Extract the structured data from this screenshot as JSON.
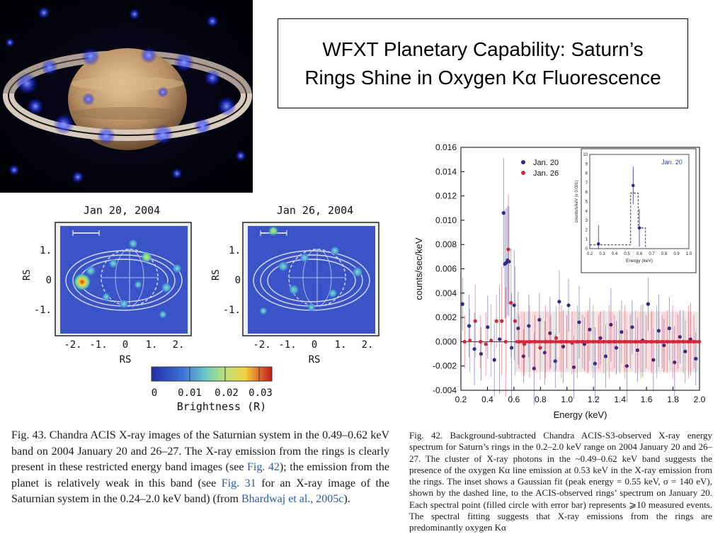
{
  "slide": {
    "title_line1": "WFXT Planetary Capability: Saturn’s",
    "title_line2": "Rings Shine in Oxygen Kα Fluorescence"
  },
  "xray_maps": {
    "panel_left_date": "Jan 20, 2004",
    "panel_right_date": "Jan 26, 2004",
    "y_axis_label": "RS",
    "x_axis_label": "RS",
    "y_ticks": [
      "1.",
      "0",
      "-1."
    ],
    "x_ticks": [
      "-2.",
      "-1.",
      "0",
      "1.",
      "2."
    ],
    "colorbar_ticks": [
      "0",
      "0.01",
      "0.02",
      "0.03"
    ],
    "colorbar_label": "Brightness (R)"
  },
  "chart_data": {
    "type": "scatter",
    "xlabel": "Energy (keV)",
    "ylabel": "counts/sec/keV",
    "xlim": [
      0.2,
      2.0
    ],
    "ylim": [
      -0.004,
      0.016
    ],
    "x_ticks": [
      "0.2",
      "0.4",
      "0.6",
      "0.8",
      "1.0",
      "1.2",
      "1.4",
      "1.6",
      "1.8",
      "2.0"
    ],
    "y_ticks": [
      "-0.004",
      "-0.002",
      "0.000",
      "0.002",
      "0.004",
      "0.006",
      "0.008",
      "0.010",
      "0.012",
      "0.014",
      "0.016"
    ],
    "legend_position": "top-left",
    "series": [
      {
        "name": "Jan. 20",
        "color": "#2b2b8c",
        "x": [
          0.22,
          0.27,
          0.31,
          0.36,
          0.41,
          0.46,
          0.5,
          0.53,
          0.54,
          0.55,
          0.56,
          0.57,
          0.59,
          0.61,
          0.64,
          0.68,
          0.72,
          0.76,
          0.8,
          0.84,
          0.88,
          0.92,
          0.95,
          0.98,
          1.02,
          1.06,
          1.1,
          1.14,
          1.18,
          1.22,
          1.26,
          1.3,
          1.34,
          1.38,
          1.42,
          1.46,
          1.5,
          1.54,
          1.58,
          1.62,
          1.66,
          1.7,
          1.74,
          1.78,
          1.82,
          1.86,
          1.9,
          1.94,
          1.98
        ],
        "y": [
          0.0031,
          0.0013,
          -0.0006,
          -0.001,
          0.0012,
          -0.0015,
          0.0002,
          0.0106,
          0.0064,
          0.0065,
          0.0067,
          0.0066,
          -0.0005,
          0.003,
          0.0011,
          -0.0012,
          0.0013,
          -0.0022,
          0.0018,
          -0.0009,
          0.0007,
          -0.0016,
          0.0033,
          -0.0004,
          0.003,
          -0.0021,
          0.0016,
          -0.0002,
          0.001,
          -0.0018,
          0.0003,
          -0.0012,
          0.0014,
          -0.0005,
          0.0008,
          -0.002,
          0.0012,
          -0.0007,
          0.0001,
          0.0031,
          -0.0015,
          0.0009,
          -0.0003,
          0.0011,
          -0.0017,
          0.0004,
          -0.0008,
          0.0002,
          -0.0014
        ]
      },
      {
        "name": "Jan. 26",
        "color": "#d1293a",
        "x": [
          0.22,
          0.26,
          0.3,
          0.34,
          0.38,
          0.42,
          0.46,
          0.5,
          0.53,
          0.55,
          0.57,
          0.6,
          0.63,
          0.67,
          0.71,
          0.75,
          0.79,
          0.83,
          0.87,
          0.91,
          0.95,
          0.99,
          1.03,
          1.07,
          1.11,
          1.15,
          1.19,
          1.23,
          1.27,
          1.31,
          1.35,
          1.39,
          1.43,
          1.47,
          1.51,
          1.55,
          1.59,
          1.63,
          1.67,
          1.71,
          1.75,
          1.79,
          1.83,
          1.87,
          1.91,
          1.95,
          1.99
        ],
        "y": [
          0.0,
          0.0001,
          0.0017,
          0.0,
          -0.0002,
          0.0001,
          0.0017,
          0.0017,
          0.0,
          0.0076,
          0.0032,
          0.0017,
          0.0,
          -0.0002,
          0.0,
          0.0,
          -0.0005,
          0.0,
          0.0,
          0.0003,
          0.0,
          0.0,
          -0.0001,
          0.0,
          0.0,
          0.0,
          0.0,
          0.0,
          0.0,
          0.0,
          0.0,
          0.0,
          0.0,
          0.0,
          0.0,
          0.0,
          0.0,
          0.0,
          0.0,
          0.0,
          0.0,
          0.0,
          0.0,
          0.0,
          0.0,
          0.0,
          0.0
        ]
      }
    ],
    "inset": {
      "label": "Jan. 20",
      "xlabel": "Energy (keV)",
      "ylabel": "counts/s/keV  (x 0.001)",
      "x_ticks": [
        "0.2",
        "0.3",
        "0.4",
        "0.5",
        "0.6",
        "0.7",
        "0.8",
        "0.9",
        "1.0"
      ],
      "y_ticks": [
        "0",
        "1",
        "2",
        "3",
        "4",
        "5",
        "6",
        "7",
        "8",
        "9",
        "10"
      ],
      "xlim": [
        0.2,
        1.0
      ],
      "ylim": [
        0,
        10
      ],
      "points_x": [
        0.27,
        0.55,
        0.6
      ],
      "points_y": [
        0.5,
        6.7,
        2.2
      ]
    }
  },
  "captions": {
    "fig43_part1": "Fig. 43. Chandra ACIS X-ray images of the Saturnian system in the 0.49–0.62 keV band on 2004 January 20 and 26–27. The X-ray emission from the rings is clearly present in these restricted energy band images (see ",
    "fig43_link1": "Fig. 42",
    "fig43_part2": "); the emission from the planet is relatively weak in this band (see ",
    "fig43_link2": "Fig. 31",
    "fig43_part3": " for an X-ray image of the Saturnian system in the 0.24–2.0 keV band) (from ",
    "fig43_link3": "Bhardwaj et al., 2005c",
    "fig43_part4": ").",
    "fig42": "Fig. 42. Background-subtracted Chandra ACIS-S3-observed X-ray energy spectrum for Saturn’s rings in the 0.2–2.0 keV range on 2004 January 20 and 26–27. The cluster of X-ray photons in the ~0.49–0.62 keV band suggests the presence of the oxygen Kα line emission at 0.53 keV in the X-ray emission from the rings. The inset shows a Gaussian fit (peak energy = 0.55 keV, σ = 140 eV), shown by the dashed line, to the ACIS-observed rings’ spectrum on January 20. Each spectral point (filled circle with error bar) represents ⩾10 measured events. The spectral fitting suggests that X-ray emissions from the rings are predominantly oxygen Kα"
  }
}
